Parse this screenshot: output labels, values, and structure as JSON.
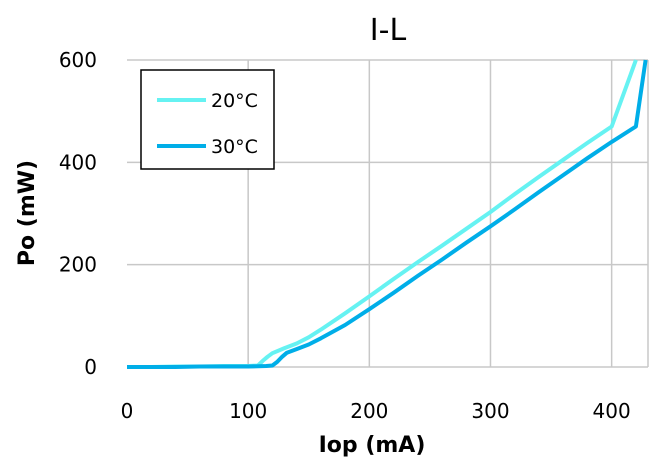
{
  "chart_data": {
    "type": "line",
    "title": "I-L",
    "xlabel": "Iop (mA)",
    "ylabel": "Po (mW)",
    "xlim": [
      0,
      430
    ],
    "ylim": [
      0,
      600
    ],
    "x_ticks": [
      0,
      100,
      200,
      300,
      400
    ],
    "y_ticks": [
      0,
      200,
      400,
      600
    ],
    "grid": true,
    "legend_position": "top-left",
    "series": [
      {
        "name": "20°C",
        "color": "#66f2f2",
        "points": [
          [
            0,
            0
          ],
          [
            20,
            0
          ],
          [
            40,
            1
          ],
          [
            60,
            1
          ],
          [
            80,
            2
          ],
          [
            100,
            2
          ],
          [
            108,
            3
          ],
          [
            112,
            12
          ],
          [
            116,
            20
          ],
          [
            120,
            27
          ],
          [
            130,
            37
          ],
          [
            140,
            46
          ],
          [
            150,
            58
          ],
          [
            160,
            73
          ],
          [
            180,
            105
          ],
          [
            200,
            138
          ],
          [
            220,
            172
          ],
          [
            240,
            205
          ],
          [
            260,
            237
          ],
          [
            280,
            270
          ],
          [
            300,
            303
          ],
          [
            320,
            338
          ],
          [
            340,
            372
          ],
          [
            360,
            405
          ],
          [
            380,
            438
          ],
          [
            400,
            470
          ],
          [
            420,
            600
          ]
        ]
      },
      {
        "name": "30°C",
        "color": "#00aee8",
        "points": [
          [
            0,
            0
          ],
          [
            20,
            0
          ],
          [
            40,
            0
          ],
          [
            60,
            1
          ],
          [
            80,
            1
          ],
          [
            100,
            1
          ],
          [
            115,
            2
          ],
          [
            120,
            3
          ],
          [
            124,
            10
          ],
          [
            128,
            20
          ],
          [
            132,
            28
          ],
          [
            140,
            35
          ],
          [
            150,
            44
          ],
          [
            160,
            56
          ],
          [
            180,
            82
          ],
          [
            200,
            113
          ],
          [
            220,
            145
          ],
          [
            240,
            178
          ],
          [
            260,
            210
          ],
          [
            280,
            243
          ],
          [
            300,
            275
          ],
          [
            320,
            308
          ],
          [
            340,
            342
          ],
          [
            360,
            375
          ],
          [
            380,
            408
          ],
          [
            400,
            440
          ],
          [
            420,
            470
          ],
          [
            428,
            600
          ]
        ]
      }
    ]
  }
}
